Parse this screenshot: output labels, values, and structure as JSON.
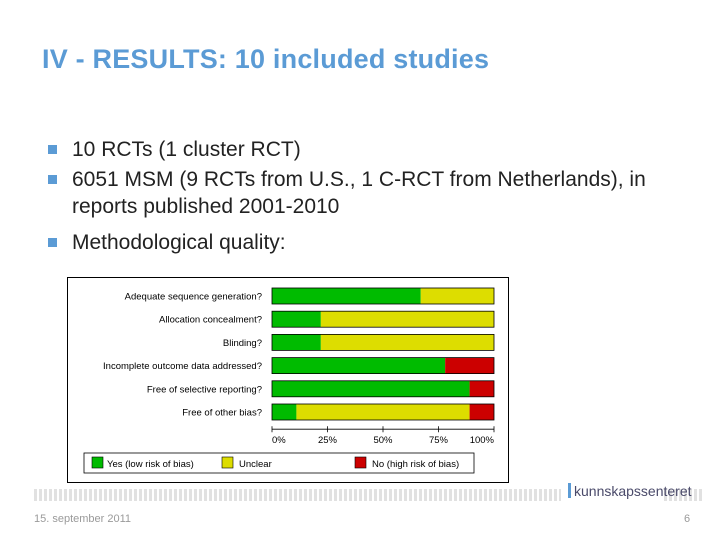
{
  "title": "IV - RESULTS: 10 included studies",
  "bullets": [
    "10 RCTs (1 cluster RCT)",
    "6051 MSM (9 RCTs from U.S., 1 C-RCT from Netherlands), in reports published 2001-2010",
    "Methodological quality:"
  ],
  "colors": {
    "title": "#5b9bd5",
    "bullet": "#5b9bd5",
    "low": "#00bb00",
    "unclear": "#dddd00",
    "high": "#cc0000"
  },
  "chart_data": {
    "type": "bar",
    "orientation": "horizontal",
    "stacked": true,
    "categories": [
      "Adequate sequence generation?",
      "Allocation concealment?",
      "Blinding?",
      "Incomplete outcome data addressed?",
      "Free of selective reporting?",
      "Free of other bias?"
    ],
    "series": [
      {
        "name": "Yes (low risk of bias)",
        "color": "#00bb00",
        "values": [
          67,
          22,
          22,
          78,
          89,
          11
        ]
      },
      {
        "name": "Unclear",
        "color": "#dddd00",
        "values": [
          33,
          78,
          78,
          0,
          0,
          78
        ]
      },
      {
        "name": "No (high risk of bias)",
        "color": "#cc0000",
        "values": [
          0,
          0,
          0,
          22,
          11,
          11
        ]
      }
    ],
    "xticks": [
      "0%",
      "25%",
      "50%",
      "75%",
      "100%"
    ],
    "xlim": [
      0,
      100
    ],
    "legend_position": "bottom"
  },
  "footer": {
    "date": "15. september 2011",
    "page": "6",
    "logo_text": "kunnskapssenteret"
  }
}
